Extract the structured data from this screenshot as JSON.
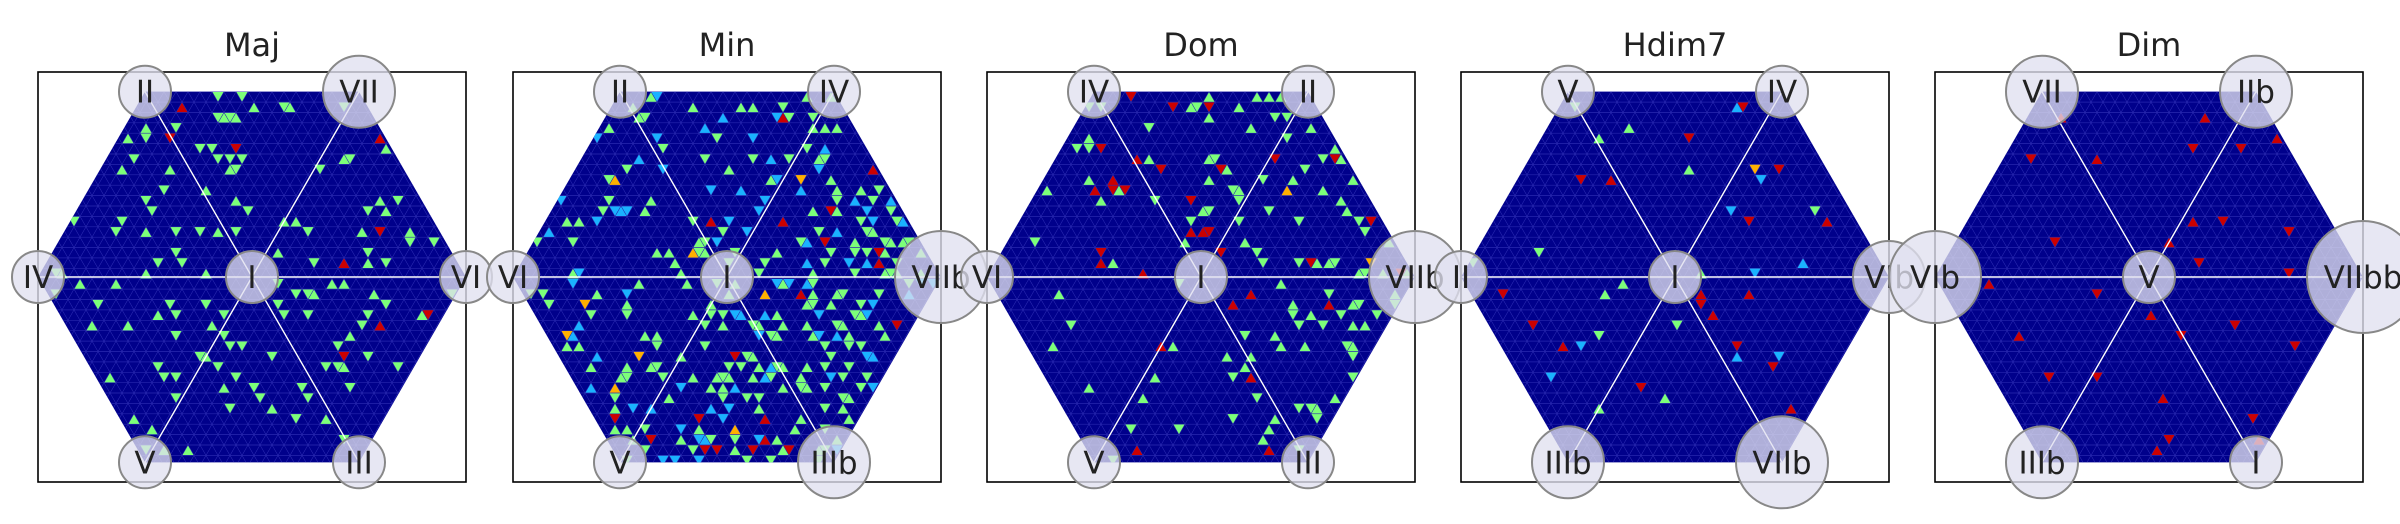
{
  "chart_data": [
    {
      "type": "heatmap",
      "title": "Maj",
      "center_label": "I",
      "vertex_labels": [
        "II",
        "VII",
        "VI",
        "III",
        "V",
        "IV"
      ],
      "vertex_label_weights": [
        0,
        1,
        0,
        0,
        0,
        0
      ],
      "background_color": "#00008b",
      "highlight_colors": [
        "#7cff79",
        "#1ab2ff",
        "#cc0000",
        "#ffb000"
      ],
      "highlight_mix": [
        0.93,
        0.0,
        0.07,
        0.0
      ],
      "highlight_density": 0.07,
      "region_bias": 0.0
    },
    {
      "type": "heatmap",
      "title": "Min",
      "center_label": "I",
      "vertex_labels": [
        "II",
        "IV",
        "VIIb",
        "IIIb",
        "V",
        "VI"
      ],
      "vertex_label_weights": [
        0,
        0,
        2,
        1,
        0,
        0
      ],
      "background_color": "#00008b",
      "highlight_colors": [
        "#7cff79",
        "#1ab2ff",
        "#cc0000",
        "#ffb000"
      ],
      "highlight_mix": [
        0.66,
        0.25,
        0.06,
        0.03
      ],
      "highlight_density": 0.17,
      "region_bias": 0.4
    },
    {
      "type": "heatmap",
      "title": "Dom",
      "center_label": "I",
      "vertex_labels": [
        "IV",
        "II",
        "VIIb",
        "III",
        "V",
        "VI"
      ],
      "vertex_label_weights": [
        0,
        0,
        2,
        0,
        0,
        0
      ],
      "background_color": "#00008b",
      "highlight_colors": [
        "#7cff79",
        "#1ab2ff",
        "#cc0000",
        "#ffb000"
      ],
      "highlight_mix": [
        0.74,
        0.0,
        0.25,
        0.01
      ],
      "highlight_density": 0.08,
      "region_bias": 0.5
    },
    {
      "type": "heatmap",
      "title": "Hdim7",
      "center_label": "I",
      "vertex_labels": [
        "V",
        "IV",
        "VIb",
        "VIIb",
        "IIIb",
        "II"
      ],
      "vertex_label_weights": [
        0,
        0,
        1,
        2,
        1,
        0
      ],
      "background_color": "#00008b",
      "highlight_colors": [
        "#7cff79",
        "#1ab2ff",
        "#cc0000",
        "#ffb000"
      ],
      "highlight_mix": [
        0.4,
        0.15,
        0.43,
        0.02
      ],
      "highlight_density": 0.025,
      "region_bias": 0.2
    },
    {
      "type": "heatmap",
      "title": "Dim",
      "center_label": "V",
      "vertex_labels": [
        "VII",
        "IIb",
        "VIIbb",
        "I",
        "IIIb",
        "VIb"
      ],
      "vertex_label_weights": [
        1,
        1,
        3,
        0,
        1,
        2
      ],
      "background_color": "#00008b",
      "highlight_colors": [
        "#7cff79",
        "#1ab2ff",
        "#cc0000",
        "#ffb000"
      ],
      "highlight_mix": [
        0.0,
        0.0,
        1.0,
        0.0
      ],
      "highlight_density": 0.012,
      "region_bias": 0.0
    }
  ]
}
